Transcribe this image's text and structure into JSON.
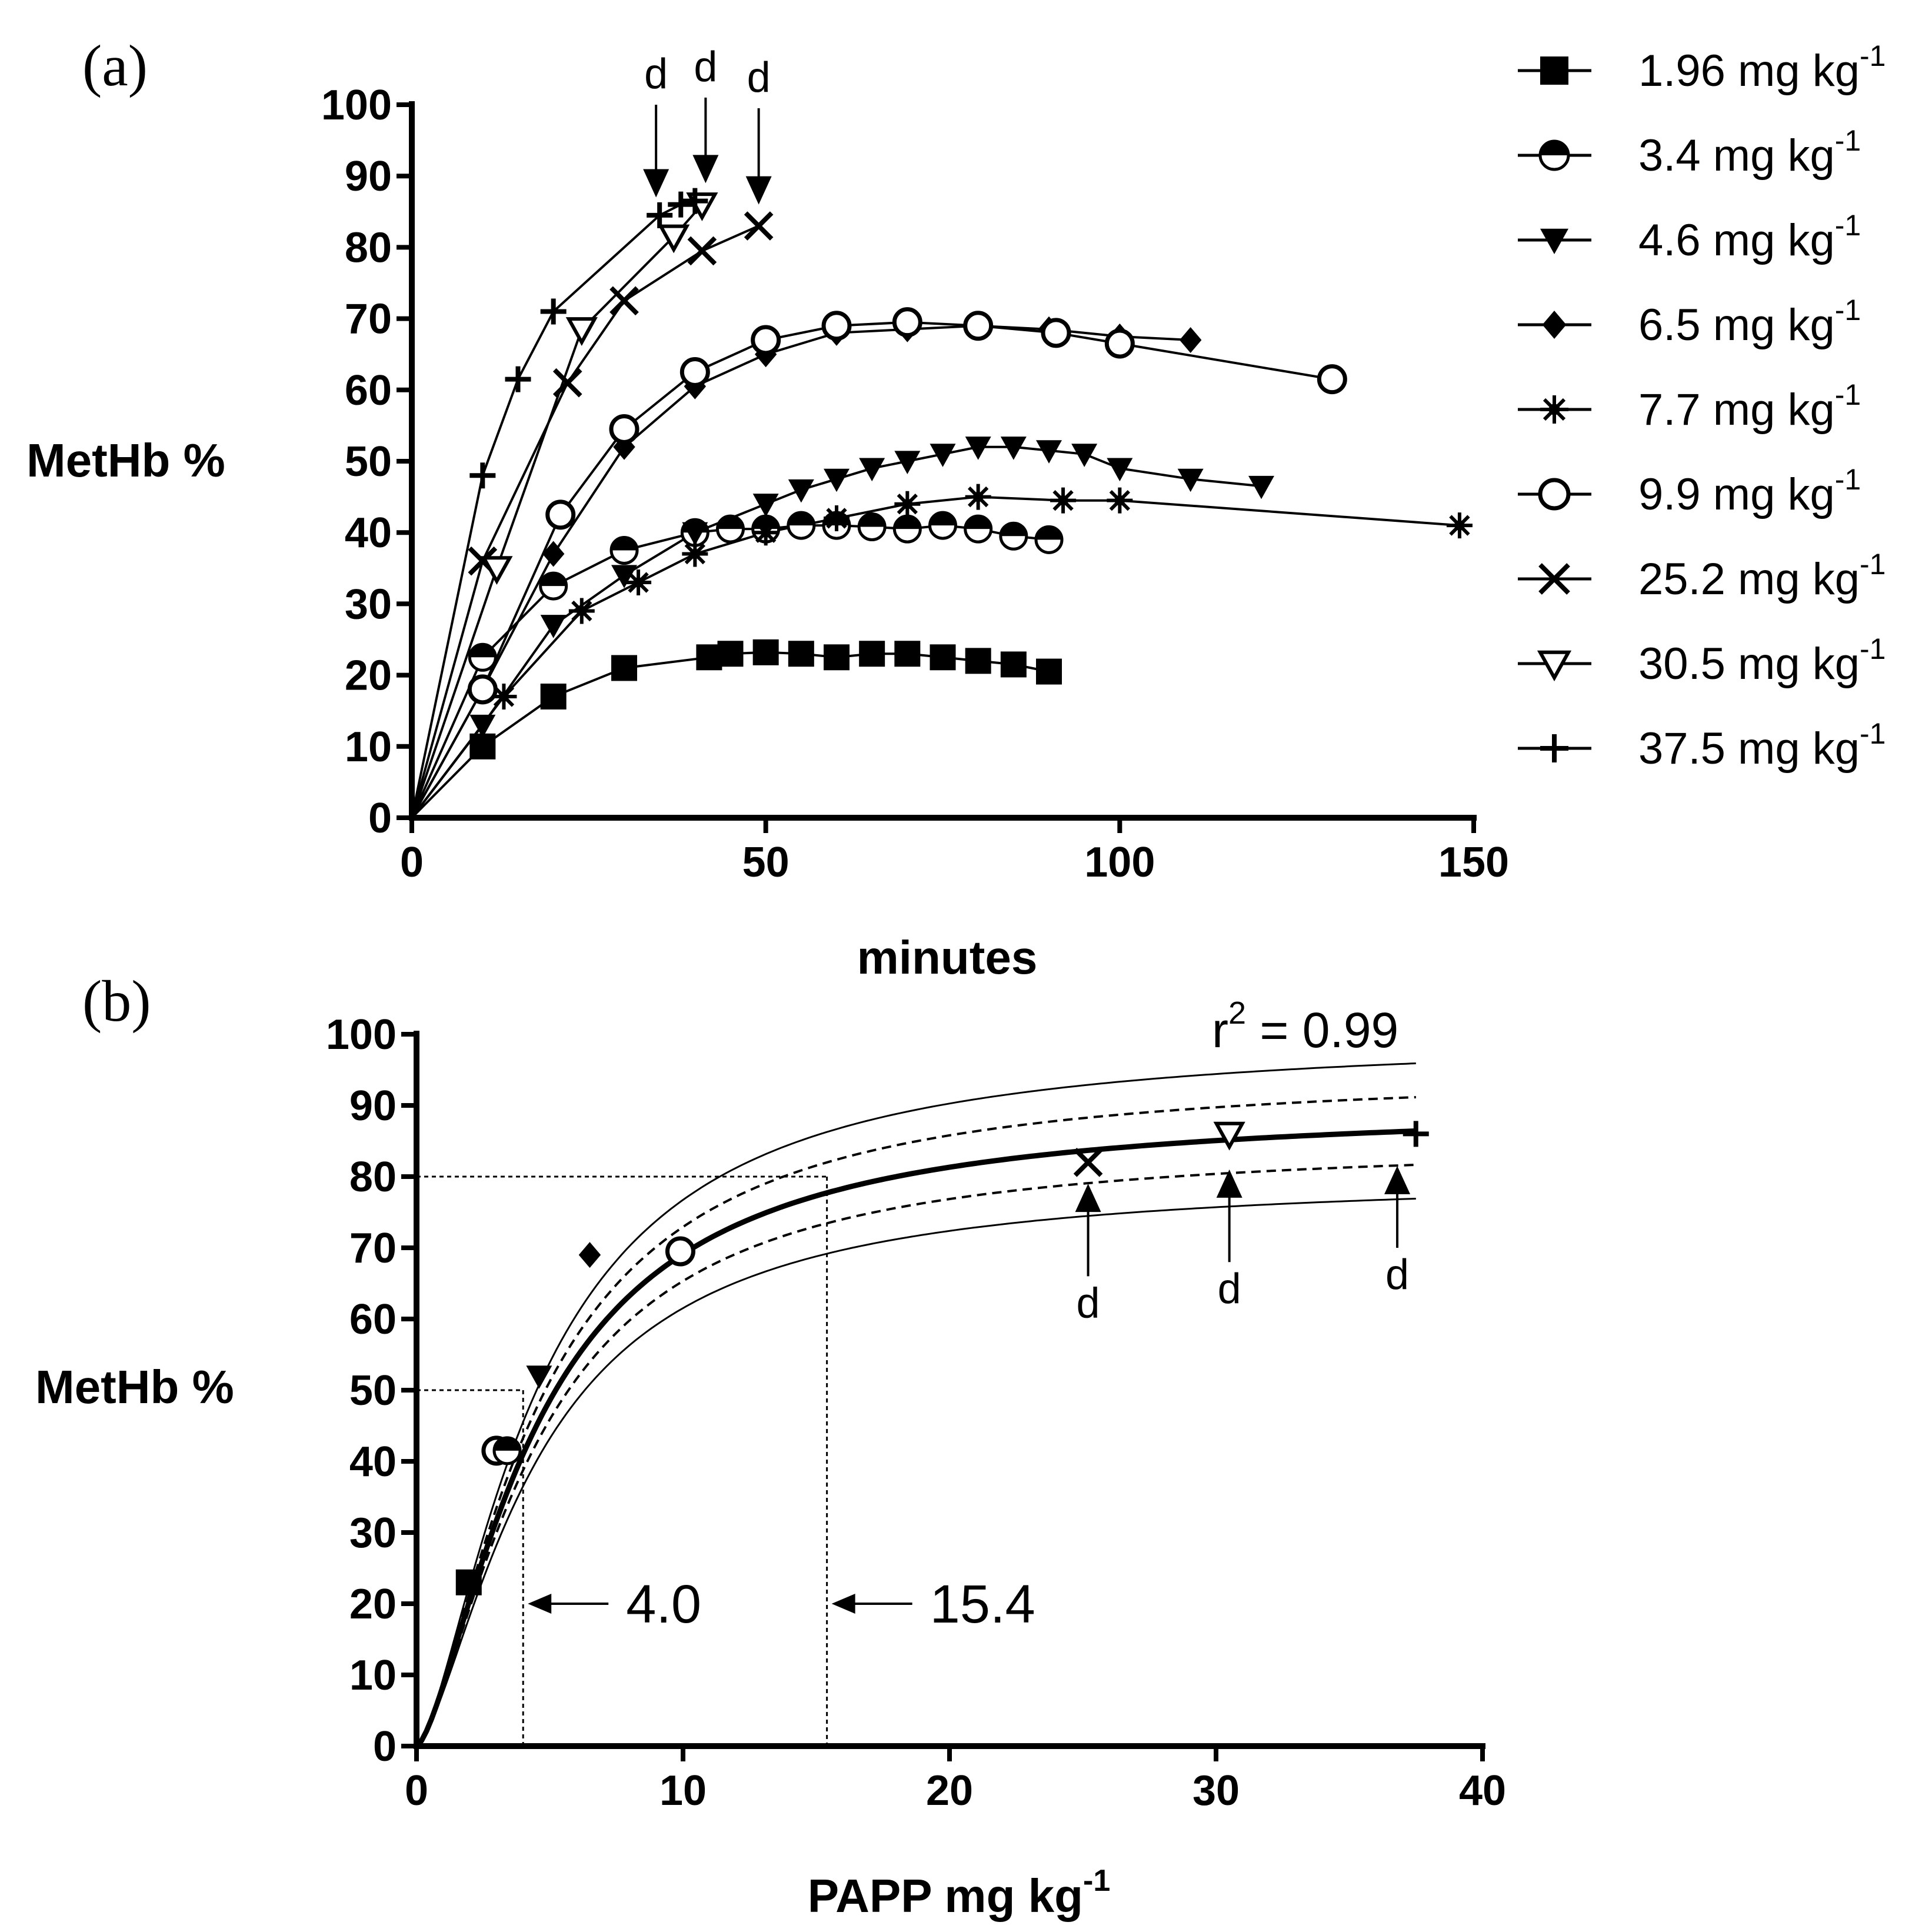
{
  "panel_a_label": "(a)",
  "panel_b_label": "(b)",
  "colors": {
    "ink": "#000000",
    "background": "#ffffff"
  },
  "chart_data": [
    {
      "id": "a",
      "type": "line",
      "ylabel": "MetHb %",
      "xlabel": "minutes",
      "xlim": [
        0,
        150
      ],
      "ylim": [
        0,
        100
      ],
      "xticks": [
        0,
        50,
        100,
        150
      ],
      "yticks": [
        0,
        10,
        20,
        30,
        40,
        50,
        60,
        70,
        80,
        90,
        100
      ],
      "grid": false,
      "legend_position": "right",
      "death_label": "d",
      "death_markers": [
        {
          "x": 34.5,
          "y_from": 100,
          "y_to": 87
        },
        {
          "x": 41.5,
          "y_from": 101,
          "y_to": 89
        },
        {
          "x": 49,
          "y_from": 99.5,
          "y_to": 86
        }
      ],
      "series": [
        {
          "name": "1.96 mg kg",
          "unit_sup": "-1",
          "marker": "square",
          "points": [
            [
              0,
              0
            ],
            [
              10,
              10
            ],
            [
              20,
              17
            ],
            [
              30,
              21
            ],
            [
              42,
              22.5
            ],
            [
              45,
              23
            ],
            [
              50,
              23.2
            ],
            [
              55,
              23
            ],
            [
              60,
              22.5
            ],
            [
              65,
              23
            ],
            [
              70,
              23
            ],
            [
              75,
              22.5
            ],
            [
              80,
              22
            ],
            [
              85,
              21.5
            ],
            [
              90,
              20.5
            ]
          ]
        },
        {
          "name": "3.4 mg kg",
          "unit_sup": "-1",
          "marker": "half-circle",
          "points": [
            [
              0,
              0
            ],
            [
              10,
              22.5
            ],
            [
              20,
              32.5
            ],
            [
              30,
              37.5
            ],
            [
              40,
              40
            ],
            [
              45,
              40.5
            ],
            [
              50,
              40.5
            ],
            [
              55,
              41
            ],
            [
              60,
              41
            ],
            [
              65,
              40.8
            ],
            [
              70,
              40.5
            ],
            [
              75,
              41
            ],
            [
              80,
              40.5
            ],
            [
              85,
              39.5
            ],
            [
              90,
              39
            ]
          ]
        },
        {
          "name": "4.6 mg kg",
          "unit_sup": "-1",
          "marker": "triangle-down",
          "points": [
            [
              0,
              0
            ],
            [
              10,
              13
            ],
            [
              20,
              27
            ],
            [
              30,
              34
            ],
            [
              40,
              40
            ],
            [
              50,
              44
            ],
            [
              55,
              46
            ],
            [
              60,
              47.5
            ],
            [
              65,
              49
            ],
            [
              70,
              50
            ],
            [
              75,
              51
            ],
            [
              80,
              52
            ],
            [
              85,
              52
            ],
            [
              90,
              51.5
            ],
            [
              95,
              51
            ],
            [
              100,
              49
            ],
            [
              110,
              47.5
            ],
            [
              120,
              46.5
            ]
          ]
        },
        {
          "name": "6.5 mg kg",
          "unit_sup": "-1",
          "marker": "diamond",
          "points": [
            [
              0,
              0
            ],
            [
              10,
              18
            ],
            [
              20,
              37
            ],
            [
              30,
              52
            ],
            [
              40,
              60.5
            ],
            [
              50,
              65
            ],
            [
              60,
              68
            ],
            [
              70,
              68.5
            ],
            [
              80,
              69
            ],
            [
              90,
              68.5
            ],
            [
              100,
              67.5
            ],
            [
              110,
              67
            ]
          ]
        },
        {
          "name": "7.7 mg kg",
          "unit_sup": "-1",
          "marker": "asterisk",
          "points": [
            [
              0,
              0
            ],
            [
              13,
              17
            ],
            [
              24,
              29
            ],
            [
              32,
              33
            ],
            [
              40,
              37
            ],
            [
              50,
              40
            ],
            [
              60,
              42
            ],
            [
              70,
              44
            ],
            [
              80,
              45
            ],
            [
              92,
              44.5
            ],
            [
              100,
              44.5
            ],
            [
              148,
              41
            ]
          ]
        },
        {
          "name": "9.9 mg kg",
          "unit_sup": "-1",
          "marker": "circle",
          "points": [
            [
              0,
              0
            ],
            [
              10,
              18
            ],
            [
              21,
              42.5
            ],
            [
              30,
              54.5
            ],
            [
              40,
              62.5
            ],
            [
              50,
              67
            ],
            [
              60,
              69
            ],
            [
              70,
              69.5
            ],
            [
              80,
              69
            ],
            [
              91,
              68
            ],
            [
              100,
              66.5
            ],
            [
              130,
              61.5
            ]
          ]
        },
        {
          "name": "25.2 mg kg",
          "unit_sup": "-1",
          "marker": "x",
          "points": [
            [
              0,
              0
            ],
            [
              10,
              36
            ],
            [
              22,
              61
            ],
            [
              30,
              72.5
            ],
            [
              41,
              79.5
            ],
            [
              49,
              83
            ]
          ]
        },
        {
          "name": "30.5 mg kg",
          "unit_sup": "-1",
          "marker": "triangle-down-open",
          "points": [
            [
              0,
              0
            ],
            [
              12,
              35
            ],
            [
              24,
              68.5
            ],
            [
              37,
              81.5
            ],
            [
              41,
              86
            ]
          ]
        },
        {
          "name": "37.5 mg kg",
          "unit_sup": "-1",
          "marker": "plus",
          "points": [
            [
              0,
              0
            ],
            [
              10,
              48
            ],
            [
              15,
              61.5
            ],
            [
              20,
              71
            ],
            [
              35,
              84.5
            ],
            [
              38,
              86
            ],
            [
              40,
              86.5
            ]
          ]
        }
      ]
    },
    {
      "id": "b",
      "type": "scatter",
      "ylabel": "MetHb %",
      "xlabel": "PAPP mg kg",
      "xlabel_sup": "-1",
      "xlim": [
        0,
        40
      ],
      "ylim": [
        0,
        100
      ],
      "xticks": [
        0,
        10,
        20,
        30,
        40
      ],
      "yticks": [
        0,
        10,
        20,
        30,
        40,
        50,
        60,
        70,
        80,
        90,
        100
      ],
      "grid": false,
      "r2_label": "r",
      "r2_sup": "2",
      "r2_value": " = 0.99",
      "fit": {
        "model": "hyperbolic-hill",
        "vmax": 90,
        "k": 4.5,
        "hill": 1.5,
        "x_range": [
          0,
          37.5
        ]
      },
      "ci_inner": {
        "lower_scale": 0.945,
        "upper_scale": 1.055
      },
      "ci_outer": {
        "lower_scale": 0.89,
        "upper_scale": 1.11
      },
      "reference_lines": [
        {
          "x": 4.0,
          "y": 50,
          "label": "4.0"
        },
        {
          "x": 15.4,
          "y": 80,
          "label": "15.4"
        }
      ],
      "points": [
        {
          "x": 1.96,
          "y": 23,
          "marker": "square"
        },
        {
          "x": 3.0,
          "y": 41.5,
          "marker": "circle"
        },
        {
          "x": 3.4,
          "y": 41.5,
          "marker": "half-circle"
        },
        {
          "x": 4.6,
          "y": 52,
          "marker": "triangle-down"
        },
        {
          "x": 6.5,
          "y": 69,
          "marker": "diamond"
        },
        {
          "x": 9.9,
          "y": 69.5,
          "marker": "circle"
        },
        {
          "x": 25.2,
          "y": 82,
          "marker": "x"
        },
        {
          "x": 30.5,
          "y": 86,
          "marker": "triangle-down-open"
        },
        {
          "x": 37.5,
          "y": 86,
          "marker": "plus"
        }
      ],
      "death_label": "d",
      "death_markers": [
        {
          "x": 25.2,
          "y_tip": 79,
          "y_tail": 66
        },
        {
          "x": 30.5,
          "y_tip": 81,
          "y_tail": 68
        },
        {
          "x": 36.8,
          "y_tip": 81.5,
          "y_tail": 70
        }
      ]
    }
  ]
}
